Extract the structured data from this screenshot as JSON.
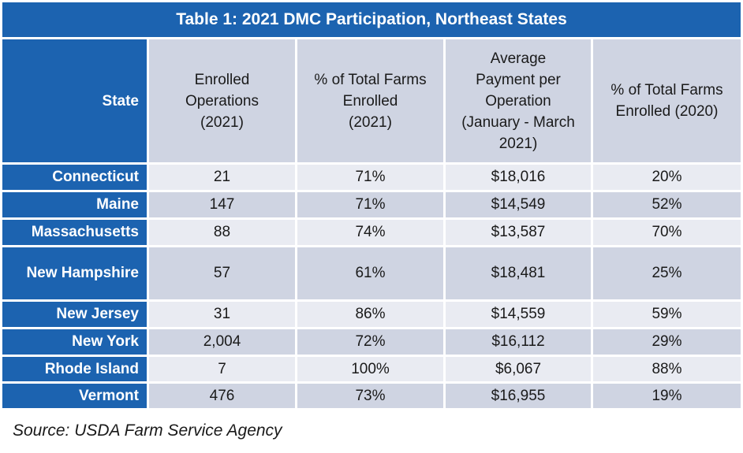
{
  "title": "Table 1: 2021 DMC Participation, Northeast States",
  "headers": {
    "state": "State",
    "enrolled": [
      "Enrolled",
      "Operations",
      "(2021)"
    ],
    "pct2021": [
      "% of Total Farms",
      "Enrolled",
      "(2021)"
    ],
    "payment": [
      "Average",
      "Payment per",
      "Operation",
      "(January - March",
      "2021)"
    ],
    "pct2020": [
      "% of Total Farms",
      "Enrolled (2020)"
    ]
  },
  "rows": [
    {
      "state": "Connecticut",
      "enrolled": "21",
      "pct2021": "71%",
      "payment": "$18,016",
      "pct2020": "20%"
    },
    {
      "state": "Maine",
      "enrolled": "147",
      "pct2021": "71%",
      "payment": "$14,549",
      "pct2020": "52%"
    },
    {
      "state": "Massachusetts",
      "enrolled": "88",
      "pct2021": "74%",
      "payment": "$13,587",
      "pct2020": "70%"
    },
    {
      "state": "New Hampshire",
      "enrolled": "57",
      "pct2021": "61%",
      "payment": "$18,481",
      "pct2020": "25%"
    },
    {
      "state": "New Jersey",
      "enrolled": "31",
      "pct2021": "86%",
      "payment": "$14,559",
      "pct2020": "59%"
    },
    {
      "state": "New York",
      "enrolled": "2,004",
      "pct2021": "72%",
      "payment": "$16,112",
      "pct2020": "29%"
    },
    {
      "state": "Rhode Island",
      "enrolled": "7",
      "pct2021": "100%",
      "payment": "$6,067",
      "pct2020": "88%"
    },
    {
      "state": "Vermont",
      "enrolled": "476",
      "pct2021": "73%",
      "payment": "$16,955",
      "pct2020": "19%"
    }
  ],
  "source": "Source: USDA Farm Service Agency",
  "colors": {
    "header_blue": "#1c63b0",
    "row_light": "#e9ebf2",
    "row_dark": "#cfd4e2"
  }
}
